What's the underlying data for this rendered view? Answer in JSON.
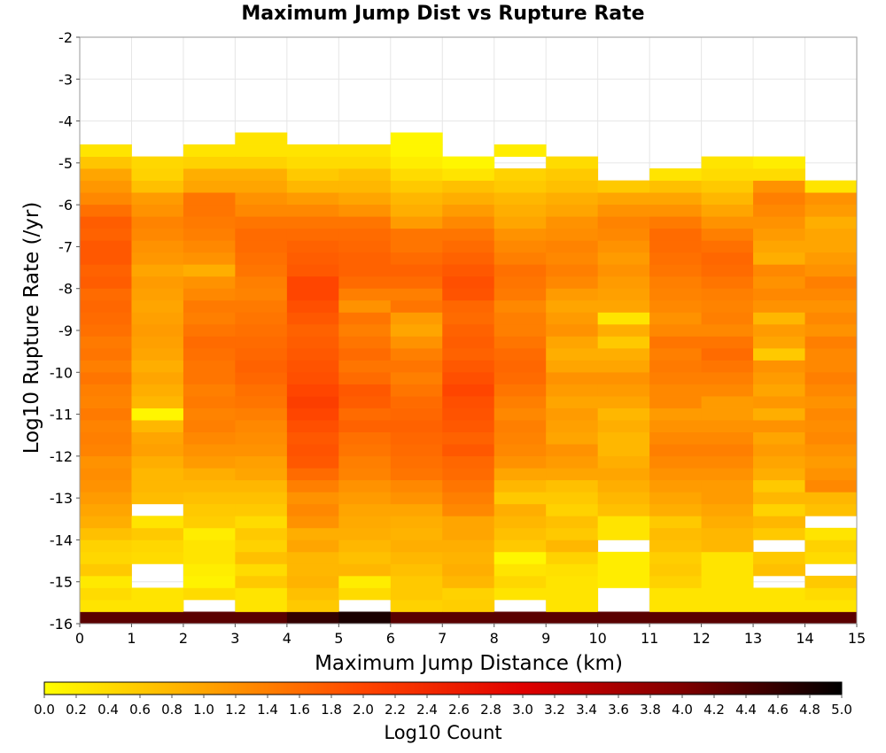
{
  "chart_data": {
    "type": "heatmap",
    "title": "Maximum Jump Dist vs Rupture Rate",
    "xlabel": "Maximum Jump Distance (km)",
    "ylabel": "Log10 Rupture Rate (/yr)",
    "colorbar_label": "Log10 Count",
    "xlim": [
      0,
      15
    ],
    "ylim": [
      -16,
      -2
    ],
    "x_ticks": [
      "0",
      "1",
      "2",
      "3",
      "4",
      "5",
      "6",
      "7",
      "8",
      "9",
      "10",
      "11",
      "12",
      "13",
      "14",
      "15"
    ],
    "y_ticks": [
      "-2",
      "-3",
      "-4",
      "-5",
      "-6",
      "-7",
      "-8",
      "-9",
      "-10",
      "-11",
      "-12",
      "-13",
      "-14",
      "-15",
      "-16"
    ],
    "colorbar_ticks": [
      "0.0",
      "0.2",
      "0.4",
      "0.6",
      "0.8",
      "1.0",
      "1.2",
      "1.4",
      "1.6",
      "1.8",
      "2.0",
      "2.2",
      "2.4",
      "2.6",
      "2.8",
      "3.0",
      "3.2",
      "3.4",
      "3.6",
      "3.8",
      "4.0",
      "4.2",
      "4.4",
      "4.6",
      "4.8",
      "5.0"
    ],
    "color_range": [
      0,
      5
    ],
    "colormap": [
      "#ffff00",
      "#ffa500",
      "#ff4500",
      "#e00000",
      "#800000",
      "#000000"
    ],
    "grid": true,
    "x_bins": [
      "0-1",
      "1-2",
      "2-3",
      "3-4",
      "4-5",
      "5-6",
      "6-7",
      "7-8",
      "8-9",
      "9-10",
      "10-11",
      "11-12",
      "12-13",
      "13-14",
      "14-15"
    ],
    "y_bin_start": -16,
    "y_bin_width": 0.286,
    "columns": [
      {
        "x_bin": "0-1",
        "values": [
          4.3,
          0.3,
          0.4,
          0.25,
          0.6,
          0.45,
          0.5,
          0.7,
          0.9,
          1.0,
          1.1,
          1.2,
          1.25,
          1.2,
          1.35,
          1.4,
          1.35,
          1.45,
          1.35,
          1.4,
          1.5,
          1.4,
          1.5,
          1.45,
          1.55,
          1.6,
          1.65,
          1.6,
          1.75,
          1.7,
          1.8,
          1.8,
          1.7,
          1.75,
          1.55,
          1.3,
          1.15,
          1.0,
          0.65,
          0.3
        ]
      },
      {
        "x_bin": "1-2",
        "values": [
          4.3,
          0.3,
          0.3,
          null,
          null,
          0.4,
          0.45,
          0.6,
          0.3,
          null,
          0.75,
          0.8,
          0.8,
          0.9,
          1.05,
          1.0,
          0.8,
          0.1,
          0.8,
          0.9,
          1.0,
          0.9,
          1.0,
          1.05,
          1.1,
          1.05,
          1.0,
          1.05,
          1.1,
          1.0,
          1.15,
          1.2,
          1.3,
          1.35,
          1.2,
          1.1,
          0.7,
          0.5,
          0.45,
          null,
          null
        ]
      },
      {
        "x_bin": "2-3",
        "values": [
          4.3,
          null,
          0.4,
          0.15,
          0.2,
          0.3,
          0.3,
          0.2,
          0.55,
          0.6,
          0.7,
          0.8,
          0.9,
          1.1,
          1.2,
          1.3,
          1.4,
          1.35,
          1.45,
          1.4,
          1.5,
          1.5,
          1.55,
          1.6,
          1.5,
          1.4,
          1.45,
          1.3,
          1.2,
          0.9,
          1.2,
          1.3,
          1.4,
          1.45,
          1.5,
          1.5,
          1.0,
          0.9,
          0.5,
          0.3,
          null,
          null
        ]
      },
      {
        "x_bin": "3-4",
        "values": [
          4.3,
          0.3,
          0.3,
          0.6,
          0.4,
          0.7,
          0.5,
          0.6,
          0.4,
          0.6,
          0.7,
          0.8,
          1.0,
          1.05,
          1.2,
          1.25,
          1.3,
          1.4,
          1.5,
          1.55,
          1.65,
          1.7,
          1.65,
          1.6,
          1.55,
          1.5,
          1.45,
          1.35,
          1.4,
          1.5,
          1.55,
          1.6,
          1.6,
          1.5,
          1.3,
          1.2,
          1.0,
          0.9,
          0.5,
          0.3,
          0.3
        ]
      },
      {
        "x_bin": "4-5",
        "values": [
          4.6,
          0.6,
          0.7,
          0.85,
          0.8,
          0.8,
          1.0,
          0.9,
          1.2,
          1.3,
          1.2,
          1.4,
          1.6,
          1.8,
          1.85,
          1.8,
          1.9,
          2.0,
          2.1,
          2.0,
          1.9,
          1.85,
          1.8,
          1.75,
          1.7,
          1.8,
          1.9,
          2.0,
          2.0,
          1.8,
          1.75,
          1.7,
          1.6,
          1.5,
          1.3,
          1.1,
          0.8,
          0.6,
          0.4,
          0.3
        ]
      },
      {
        "x_bin": "5-6",
        "values": [
          4.8,
          null,
          0.4,
          0.2,
          0.8,
          0.7,
          0.8,
          0.9,
          0.95,
          1.0,
          1.1,
          1.2,
          1.35,
          1.4,
          1.5,
          1.55,
          1.7,
          1.6,
          1.75,
          1.8,
          1.6,
          1.5,
          1.6,
          1.5,
          1.4,
          1.5,
          1.2,
          1.4,
          1.6,
          1.7,
          1.7,
          1.65,
          1.6,
          1.5,
          1.2,
          1.0,
          0.8,
          0.7,
          0.4,
          0.3
        ]
      },
      {
        "x_bin": "6-7",
        "values": [
          4.3,
          0.5,
          0.6,
          0.6,
          0.7,
          0.8,
          0.9,
          0.85,
          0.9,
          1.0,
          1.2,
          1.3,
          1.5,
          1.55,
          1.6,
          1.65,
          1.7,
          1.65,
          1.6,
          1.5,
          1.4,
          1.5,
          1.4,
          1.2,
          1.0,
          1.1,
          1.5,
          1.4,
          1.6,
          1.7,
          1.6,
          1.5,
          1.5,
          1.1,
          0.9,
          0.8,
          0.6,
          0.4,
          0.2,
          0.1,
          0.1
        ]
      },
      {
        "x_bin": "7-8",
        "values": [
          4.3,
          0.55,
          0.5,
          0.8,
          0.9,
          0.85,
          0.9,
          1.0,
          1.0,
          1.3,
          1.4,
          1.5,
          1.6,
          1.65,
          1.8,
          1.7,
          1.8,
          1.85,
          1.9,
          2.0,
          1.9,
          1.8,
          1.7,
          1.75,
          1.7,
          1.6,
          1.65,
          1.85,
          1.9,
          1.8,
          1.7,
          1.6,
          1.5,
          1.3,
          1.1,
          0.9,
          0.7,
          0.3,
          0.1,
          null
        ]
      },
      {
        "x_bin": "8-9",
        "values": [
          4.3,
          null,
          0.3,
          0.45,
          0.3,
          0.1,
          0.6,
          0.7,
          0.8,
          0.9,
          0.6,
          0.8,
          1.0,
          1.2,
          1.3,
          1.35,
          1.4,
          1.3,
          1.4,
          1.5,
          1.6,
          1.65,
          1.6,
          1.5,
          1.4,
          1.4,
          1.3,
          1.45,
          1.5,
          1.55,
          1.4,
          1.3,
          1.2,
          1.0,
          0.9,
          0.8,
          0.6,
          0.5,
          null,
          0.2
        ]
      },
      {
        "x_bin": "9-10",
        "values": [
          4.3,
          0.3,
          0.3,
          0.3,
          0.35,
          0.5,
          0.8,
          0.6,
          0.7,
          0.5,
          0.6,
          0.7,
          1.0,
          1.1,
          1.2,
          1.0,
          1.05,
          1.1,
          1.0,
          1.1,
          1.2,
          1.0,
          0.9,
          1.0,
          1.2,
          1.1,
          1.0,
          1.1,
          1.3,
          1.4,
          1.3,
          1.35,
          1.25,
          1.2,
          1.0,
          0.9,
          0.7,
          0.6,
          0.4,
          null
        ]
      },
      {
        "x_bin": "10-11",
        "values": [
          4.3,
          null,
          null,
          0.2,
          0.2,
          0.2,
          null,
          0.3,
          0.3,
          0.7,
          0.8,
          0.9,
          1.0,
          0.9,
          0.8,
          0.8,
          0.9,
          0.8,
          1.0,
          1.1,
          1.2,
          1.0,
          0.9,
          0.6,
          0.9,
          0.3,
          1.0,
          1.05,
          1.1,
          1.2,
          1.1,
          1.2,
          1.3,
          1.35,
          1.2,
          1.0,
          0.6,
          null,
          null
        ]
      },
      {
        "x_bin": "11-12",
        "values": [
          4.3,
          0.3,
          0.3,
          0.5,
          0.6,
          0.55,
          0.7,
          0.75,
          0.6,
          0.9,
          1.0,
          1.1,
          1.2,
          1.3,
          1.4,
          1.3,
          1.2,
          1.1,
          1.3,
          1.3,
          1.4,
          1.45,
          1.4,
          1.5,
          1.3,
          1.2,
          1.3,
          1.35,
          1.4,
          1.5,
          1.55,
          1.6,
          1.6,
          1.45,
          1.2,
          1.0,
          0.7,
          0.3,
          null
        ]
      },
      {
        "x_bin": "12-13",
        "values": [
          4.3,
          0.3,
          0.3,
          0.3,
          0.3,
          0.3,
          0.8,
          0.8,
          0.9,
          1.0,
          1.1,
          1.1,
          1.2,
          1.3,
          1.4,
          1.3,
          1.2,
          1.1,
          1.1,
          1.3,
          1.4,
          1.5,
          1.6,
          1.5,
          1.3,
          1.4,
          1.35,
          1.4,
          1.5,
          1.6,
          1.65,
          1.55,
          1.4,
          1.2,
          1.0,
          0.8,
          0.6,
          0.4,
          0.3
        ]
      },
      {
        "x_bin": "13-14",
        "values": [
          4.3,
          0.3,
          0.3,
          null,
          0.7,
          0.6,
          null,
          0.6,
          0.8,
          0.5,
          0.8,
          0.6,
          0.9,
          1.0,
          1.1,
          1.0,
          1.2,
          0.9,
          1.15,
          1.0,
          1.1,
          1.2,
          0.6,
          1.0,
          1.1,
          0.8,
          1.2,
          1.3,
          1.2,
          1.3,
          0.9,
          1.0,
          1.1,
          1.2,
          1.3,
          1.4,
          1.2,
          0.4,
          0.2,
          null
        ]
      },
      {
        "x_bin": "14-15",
        "values": [
          4.3,
          0.3,
          0.4,
          0.6,
          null,
          0.4,
          0.5,
          0.3,
          null,
          0.7,
          0.8,
          1.3,
          1.2,
          1.1,
          1.2,
          1.3,
          1.25,
          1.3,
          1.2,
          1.3,
          1.4,
          1.3,
          1.3,
          1.4,
          1.2,
          1.3,
          1.2,
          1.3,
          1.4,
          1.2,
          1.1,
          1.0,
          1.0,
          0.9,
          1.1,
          1.2,
          0.3,
          null
        ]
      }
    ]
  }
}
